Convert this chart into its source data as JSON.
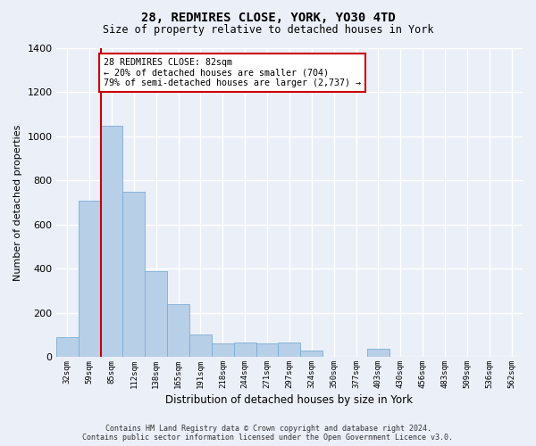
{
  "title": "28, REDMIRES CLOSE, YORK, YO30 4TD",
  "subtitle": "Size of property relative to detached houses in York",
  "xlabel": "Distribution of detached houses by size in York",
  "ylabel": "Number of detached properties",
  "footer_line1": "Contains HM Land Registry data © Crown copyright and database right 2024.",
  "footer_line2": "Contains public sector information licensed under the Open Government Licence v3.0.",
  "annotation_line1": "28 REDMIRES CLOSE: 82sqm",
  "annotation_line2": "← 20% of detached houses are smaller (704)",
  "annotation_line3": "79% of semi-detached houses are larger (2,737) →",
  "bar_color": "#b8cfe8",
  "bar_edge_color": "#7aadd4",
  "vline_color": "#cc0000",
  "vline_bar_index": 1.5,
  "categories": [
    "32sqm",
    "59sqm",
    "85sqm",
    "112sqm",
    "138sqm",
    "165sqm",
    "191sqm",
    "218sqm",
    "244sqm",
    "271sqm",
    "297sqm",
    "324sqm",
    "350sqm",
    "377sqm",
    "403sqm",
    "430sqm",
    "456sqm",
    "483sqm",
    "509sqm",
    "536sqm",
    "562sqm"
  ],
  "values": [
    90,
    710,
    1050,
    750,
    390,
    240,
    100,
    60,
    65,
    60,
    65,
    30,
    0,
    0,
    35,
    0,
    0,
    0,
    0,
    0,
    0
  ],
  "ylim": [
    0,
    1400
  ],
  "yticks": [
    0,
    200,
    400,
    600,
    800,
    1000,
    1200,
    1400
  ],
  "background_color": "#eaeff8",
  "grid_color": "#ffffff",
  "annotation_box_color": "#ffffff",
  "annotation_box_edge": "#cc0000",
  "title_fontsize": 10,
  "subtitle_fontsize": 8.5,
  "ylabel_fontsize": 8,
  "xlabel_fontsize": 8.5
}
